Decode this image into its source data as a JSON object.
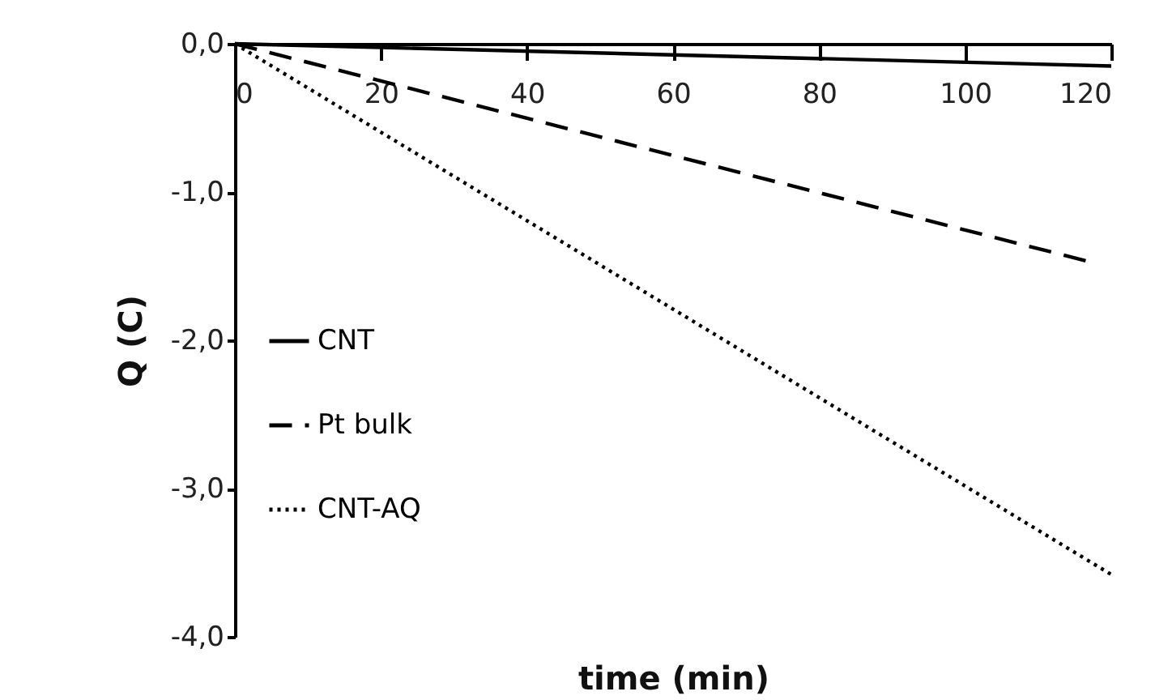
{
  "chart_data": {
    "type": "line",
    "xlabel": "time (min)",
    "ylabel": "Q (C)",
    "xlim": [
      0,
      120
    ],
    "xticks": [
      0,
      20,
      40,
      60,
      80,
      100,
      120
    ],
    "ylim": [
      -4,
      0
    ],
    "yticks": [
      {
        "value": -4,
        "label": "-4,0"
      },
      {
        "value": -3,
        "label": "-3,0"
      },
      {
        "value": -2,
        "label": "-2,0"
      },
      {
        "value": -1,
        "label": "-1,0"
      },
      {
        "value": 0,
        "label": "0,0"
      }
    ],
    "grid": false,
    "legend": "left",
    "marker": "none",
    "series": [
      {
        "name": "CNT",
        "color": "#000000",
        "line_style": "solid",
        "x": [
          0,
          120
        ],
        "values": [
          0,
          -0.15
        ]
      },
      {
        "name": "Pt bulk",
        "color": "#000000",
        "line_style": "dashed",
        "x": [
          0,
          117
        ],
        "values": [
          0,
          -1.47
        ]
      },
      {
        "name": "CNT-AQ",
        "color": "#000000",
        "line_style": "dotted",
        "x": [
          0,
          120
        ],
        "values": [
          0,
          -3.58
        ]
      }
    ]
  }
}
